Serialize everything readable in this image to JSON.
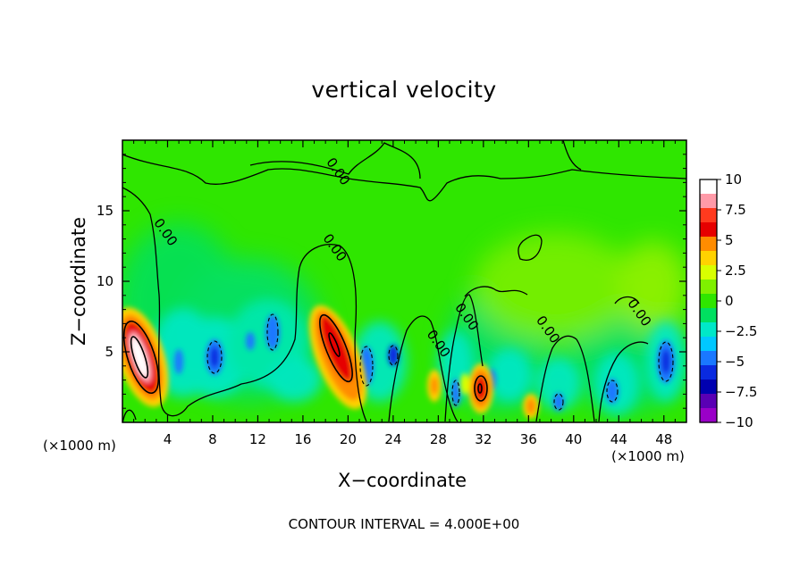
{
  "chart_data": {
    "type": "heatmap",
    "title": "vertical velocity",
    "xlabel": "X−coordinate",
    "ylabel": "Z−coordinate",
    "x_unit_label": "(×1000 m)",
    "xlim": [
      0,
      50
    ],
    "ylim": [
      0,
      20
    ],
    "x_ticks": [
      4,
      8,
      12,
      16,
      20,
      24,
      28,
      32,
      36,
      40,
      44,
      48
    ],
    "x_tick_labels": [
      "4",
      "8",
      "12",
      "16",
      "20",
      "24",
      "28",
      "32",
      "36",
      "40",
      "44",
      "48"
    ],
    "y_ticks": [
      5,
      10,
      15
    ],
    "y_tick_labels": [
      "5",
      "10",
      "15"
    ],
    "contour_note": "CONTOUR INTERVAL = 4.000E+00",
    "contour_labels": [
      {
        "text": "0.00",
        "x": 18.5,
        "y": 12.2
      },
      {
        "text": "0.00",
        "x": 3.5,
        "y": 13.3
      },
      {
        "text": "0.00",
        "x": 18.8,
        "y": 17.6
      },
      {
        "text": "0.00",
        "x": 30.2,
        "y": 7.3
      },
      {
        "text": "0.00",
        "x": 27.7,
        "y": 5.4
      },
      {
        "text": "0.00",
        "x": 37.4,
        "y": 6.4
      },
      {
        "text": "0.00",
        "x": 45.5,
        "y": 7.6
      }
    ],
    "colorbar": {
      "ticks": [
        10,
        7.5,
        5,
        2.5,
        0,
        -2.5,
        -5,
        -7.5,
        -10
      ],
      "tick_labels": [
        "10",
        "7.5",
        "5",
        "2.5",
        "0",
        "−2.5",
        "−5",
        "−7.5",
        "−10"
      ],
      "colors": [
        "#ffffff",
        "#ff9aa8",
        "#ff3a1e",
        "#e60000",
        "#ff8c00",
        "#ffd200",
        "#d8ff00",
        "#7ff000",
        "#2fe600",
        "#00e060",
        "#00e8c8",
        "#00c8ff",
        "#1a78ff",
        "#0a2ae0",
        "#0000b0",
        "#5a00b4",
        "#9a00c8"
      ]
    },
    "features": [
      {
        "kind": "updraft",
        "peak_w": 12,
        "x": 2.3,
        "z": 5.0
      },
      {
        "kind": "updraft",
        "peak_w": 9,
        "x": 18.6,
        "z": 5.5
      },
      {
        "kind": "updraft",
        "peak_w": 6,
        "x": 31.7,
        "z": 2.4
      },
      {
        "kind": "updraft",
        "peak_w": 5,
        "x": 36.2,
        "z": 1.3
      },
      {
        "kind": "updraft",
        "peak_w": 4,
        "x": 27.5,
        "z": 2.5
      },
      {
        "kind": "downdraft",
        "peak_w": -6,
        "x": 8.0,
        "z": 4.5
      },
      {
        "kind": "downdraft",
        "peak_w": -5,
        "x": 13.5,
        "z": 5.5
      },
      {
        "kind": "downdraft",
        "peak_w": -5,
        "x": 21.5,
        "z": 3.5
      },
      {
        "kind": "downdraft",
        "peak_w": -5,
        "x": 24.0,
        "z": 4.6
      },
      {
        "kind": "downdraft",
        "peak_w": -5,
        "x": 48.0,
        "z": 4.2
      },
      {
        "kind": "downdraft",
        "peak_w": -4,
        "x": 43.5,
        "z": 2.2
      },
      {
        "kind": "downdraft",
        "peak_w": -3,
        "x": 39.0,
        "z": 1.6
      }
    ]
  }
}
